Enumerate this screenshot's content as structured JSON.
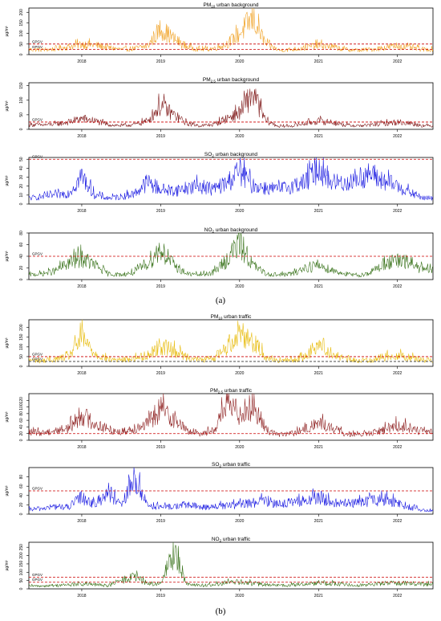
{
  "figure": {
    "ylabel": "µg/m³",
    "threshold_label": "GPGV",
    "panel_labels": [
      "(a)",
      "(b)"
    ],
    "colors": {
      "threshold": "#cc0000",
      "threshold_secondary": "#333333",
      "axis": "#000000"
    }
  },
  "chart_data": [
    {
      "type": "line",
      "group": "(a)",
      "site": "urban background",
      "pollutant": "PM10",
      "title": "PM10 urban background",
      "title_main": "PM",
      "title_sub": "10",
      "title_rest": " urban background",
      "color": "#f0a020",
      "ylim": [
        0,
        220
      ],
      "yticks": [
        0,
        50,
        100,
        150,
        200
      ],
      "thresholds": [
        50,
        25
      ],
      "gpgv_labels": [
        "GPGV",
        "GPGV"
      ],
      "xticks": [
        "2018",
        "2019",
        "2020",
        "2021",
        "2022"
      ],
      "x": [
        "2017-05",
        "2017-07",
        "2017-09",
        "2017-11",
        "2018-01",
        "2018-03",
        "2018-05",
        "2018-07",
        "2018-09",
        "2018-11",
        "2019-01",
        "2019-03",
        "2019-05",
        "2019-07",
        "2019-09",
        "2019-11",
        "2020-01",
        "2020-03",
        "2020-05",
        "2020-07",
        "2020-09",
        "2020-11",
        "2021-01",
        "2021-03",
        "2021-05",
        "2021-07",
        "2021-09",
        "2021-11",
        "2022-01",
        "2022-03",
        "2022-05"
      ],
      "y": [
        30,
        28,
        32,
        45,
        60,
        55,
        40,
        30,
        35,
        50,
        150,
        90,
        45,
        30,
        35,
        60,
        120,
        210,
        60,
        25,
        30,
        40,
        55,
        45,
        30,
        25,
        30,
        40,
        50,
        40,
        30
      ]
    },
    {
      "type": "line",
      "group": "(a)",
      "site": "urban background",
      "pollutant": "PM2.5",
      "title": "PM2.5 urban background",
      "title_main": "PM",
      "title_sub": "2.5",
      "title_rest": " urban background",
      "color": "#7a0f0f",
      "ylim": [
        0,
        160
      ],
      "yticks": [
        0,
        50,
        100,
        150
      ],
      "thresholds": [
        25
      ],
      "gpgv_labels": [
        "GPGV"
      ],
      "xticks": [
        "2018",
        "2019",
        "2020",
        "2021",
        "2022"
      ],
      "x": [
        "2017-05",
        "2017-07",
        "2017-09",
        "2017-11",
        "2018-01",
        "2018-03",
        "2018-05",
        "2018-07",
        "2018-09",
        "2018-11",
        "2019-01",
        "2019-03",
        "2019-05",
        "2019-07",
        "2019-09",
        "2019-11",
        "2020-01",
        "2020-03",
        "2020-05",
        "2020-07",
        "2020-09",
        "2020-11",
        "2021-01",
        "2021-03",
        "2021-05",
        "2021-07",
        "2021-09",
        "2021-11",
        "2022-01",
        "2022-03",
        "2022-05"
      ],
      "y": [
        20,
        18,
        22,
        30,
        45,
        35,
        20,
        15,
        20,
        35,
        100,
        60,
        25,
        15,
        20,
        45,
        70,
        150,
        35,
        12,
        15,
        25,
        35,
        30,
        18,
        15,
        18,
        25,
        30,
        25,
        15
      ]
    },
    {
      "type": "line",
      "group": "(a)",
      "site": "urban background",
      "pollutant": "SO2",
      "title": "SO2 urban background",
      "title_main": "SO",
      "title_sub": "2",
      "title_rest": " urban background",
      "color": "#1010e0",
      "ylim": [
        0,
        52
      ],
      "yticks": [
        0,
        10,
        20,
        30,
        40,
        50
      ],
      "thresholds": [
        50
      ],
      "gpgv_labels": [
        "GPGV"
      ],
      "xticks": [
        "2018",
        "2019",
        "2020",
        "2021",
        "2022"
      ],
      "x": [
        "2017-05",
        "2017-07",
        "2017-09",
        "2017-11",
        "2018-01",
        "2018-03",
        "2018-05",
        "2018-07",
        "2018-09",
        "2018-11",
        "2019-01",
        "2019-03",
        "2019-05",
        "2019-07",
        "2019-09",
        "2019-11",
        "2020-01",
        "2020-03",
        "2020-05",
        "2020-07",
        "2020-09",
        "2020-11",
        "2021-01",
        "2021-03",
        "2021-05",
        "2021-07",
        "2021-09",
        "2021-11",
        "2022-01",
        "2022-03",
        "2022-05"
      ],
      "y": [
        8,
        10,
        12,
        15,
        38,
        12,
        8,
        10,
        14,
        30,
        20,
        18,
        22,
        25,
        20,
        28,
        45,
        25,
        22,
        20,
        25,
        30,
        50,
        30,
        28,
        35,
        40,
        30,
        25,
        15,
        8
      ]
    },
    {
      "type": "line",
      "group": "(a)",
      "site": "urban background",
      "pollutant": "NO2",
      "title": "NO2 urban background",
      "title_main": "NO",
      "title_sub": "2",
      "title_rest": " urban background",
      "color": "#2e6b0e",
      "ylim": [
        0,
        80
      ],
      "yticks": [
        0,
        20,
        40,
        60,
        80
      ],
      "thresholds": [
        40
      ],
      "gpgv_labels": [
        "GPGV"
      ],
      "xticks": [
        "2018",
        "2019",
        "2020",
        "2021",
        "2022"
      ],
      "x": [
        "2017-05",
        "2017-07",
        "2017-09",
        "2017-11",
        "2018-01",
        "2018-03",
        "2018-05",
        "2018-07",
        "2018-09",
        "2018-11",
        "2019-01",
        "2019-03",
        "2019-05",
        "2019-07",
        "2019-09",
        "2019-11",
        "2020-01",
        "2020-03",
        "2020-05",
        "2020-07",
        "2020-09",
        "2020-11",
        "2021-01",
        "2021-03",
        "2021-05",
        "2021-07",
        "2021-09",
        "2021-11",
        "2022-01",
        "2022-03",
        "2022-05"
      ],
      "y": [
        10,
        12,
        18,
        35,
        45,
        30,
        12,
        10,
        15,
        35,
        65,
        30,
        12,
        10,
        15,
        40,
        78,
        30,
        12,
        10,
        12,
        25,
        30,
        20,
        12,
        8,
        15,
        35,
        38,
        35,
        20
      ]
    },
    {
      "type": "line",
      "group": "(b)",
      "site": "urban traffic",
      "pollutant": "PM10",
      "title": "PM10 urban traffic",
      "title_main": "PM",
      "title_sub": "10",
      "title_rest": " urban traffic",
      "color": "#e6b800",
      "ylim": [
        0,
        240
      ],
      "yticks": [
        0,
        50,
        100,
        150,
        200
      ],
      "thresholds": [
        50,
        25
      ],
      "gpgv_labels": [
        "GPGV",
        "GPGV"
      ],
      "xticks": [
        "2018",
        "2019",
        "2020",
        "2021",
        "2022"
      ],
      "x": [
        "2017-05",
        "2017-07",
        "2017-09",
        "2017-11",
        "2018-01",
        "2018-03",
        "2018-05",
        "2018-07",
        "2018-09",
        "2018-11",
        "2019-01",
        "2019-03",
        "2019-05",
        "2019-07",
        "2019-09",
        "2019-11",
        "2020-01",
        "2020-03",
        "2020-05",
        "2020-07",
        "2020-09",
        "2020-11",
        "2021-01",
        "2021-03",
        "2021-05",
        "2021-07",
        "2021-09",
        "2021-11",
        "2022-01",
        "2022-03",
        "2022-05"
      ],
      "y": [
        40,
        35,
        45,
        60,
        180,
        80,
        45,
        40,
        50,
        70,
        130,
        100,
        60,
        40,
        50,
        120,
        220,
        160,
        60,
        35,
        40,
        60,
        150,
        80,
        45,
        35,
        40,
        60,
        70,
        55,
        40
      ]
    },
    {
      "type": "line",
      "group": "(b)",
      "site": "urban traffic",
      "pollutant": "PM2.5",
      "title": "PM2.5 urban traffic",
      "title_main": "PM",
      "title_sub": "2.5",
      "title_rest": " urban traffic",
      "color": "#8b1a1a",
      "ylim": [
        0,
        140
      ],
      "yticks": [
        0,
        20,
        40,
        60,
        80,
        100,
        120
      ],
      "thresholds": [
        20
      ],
      "gpgv_labels": [],
      "xticks": [
        "2018",
        "2019",
        "2020",
        "2021",
        "2022"
      ],
      "x": [
        "2017-05",
        "2017-07",
        "2017-09",
        "2017-11",
        "2018-01",
        "2018-03",
        "2018-05",
        "2018-07",
        "2018-09",
        "2018-11",
        "2019-01",
        "2019-03",
        "2019-05",
        "2019-07",
        "2019-09",
        "2019-11",
        "2020-01",
        "2020-03",
        "2020-05",
        "2020-07",
        "2020-09",
        "2020-11",
        "2021-01",
        "2021-03",
        "2021-05",
        "2021-07",
        "2021-09",
        "2021-11",
        "2022-01",
        "2022-03",
        "2022-05"
      ],
      "y": [
        30,
        28,
        35,
        45,
        95,
        60,
        40,
        30,
        45,
        60,
        115,
        80,
        35,
        25,
        35,
        130,
        100,
        130,
        40,
        20,
        25,
        40,
        65,
        45,
        25,
        20,
        25,
        40,
        55,
        45,
        30
      ]
    },
    {
      "type": "line",
      "group": "(b)",
      "site": "urban traffic",
      "pollutant": "SO2",
      "title": "SO2 urban traffic",
      "title_main": "SO",
      "title_sub": "2",
      "title_rest": " urban traffic",
      "color": "#1010e0",
      "ylim": [
        0,
        100
      ],
      "yticks": [
        0,
        20,
        40,
        60,
        80
      ],
      "thresholds": [
        50
      ],
      "gpgv_labels": [
        "GPGV"
      ],
      "xticks": [
        "2018",
        "2019",
        "2020",
        "2021",
        "2022"
      ],
      "x": [
        "2017-05",
        "2017-07",
        "2017-09",
        "2017-11",
        "2018-01",
        "2018-03",
        "2018-05",
        "2018-07",
        "2018-09",
        "2018-11",
        "2019-01",
        "2019-03",
        "2019-05",
        "2019-07",
        "2019-09",
        "2019-11",
        "2020-01",
        "2020-03",
        "2020-05",
        "2020-07",
        "2020-09",
        "2020-11",
        "2021-01",
        "2021-03",
        "2021-05",
        "2021-07",
        "2021-09",
        "2021-11",
        "2022-01",
        "2022-03",
        "2022-05"
      ],
      "y": [
        12,
        15,
        20,
        18,
        45,
        25,
        60,
        20,
        95,
        25,
        18,
        20,
        25,
        18,
        20,
        22,
        25,
        30,
        35,
        28,
        30,
        35,
        45,
        30,
        28,
        30,
        35,
        38,
        30,
        18,
        10
      ]
    },
    {
      "type": "line",
      "group": "(b)",
      "site": "urban traffic",
      "pollutant": "NO2",
      "title": "NO2 urban traffic",
      "title_main": "NO",
      "title_sub": "2",
      "title_rest": " urban traffic",
      "color": "#2e6b0e",
      "ylim": [
        0,
        280
      ],
      "yticks": [
        0,
        50,
        100,
        150,
        200,
        250
      ],
      "thresholds": [
        70,
        40
      ],
      "gpgv_labels": [
        "GPGV",
        "GPGV"
      ],
      "xticks": [
        "2018",
        "2019",
        "2020",
        "2021",
        "2022"
      ],
      "x": [
        "2017-05",
        "2017-07",
        "2017-09",
        "2017-11",
        "2018-01",
        "2018-03",
        "2018-05",
        "2018-07",
        "2018-09",
        "2018-11",
        "2019-01",
        "2019-03",
        "2019-05",
        "2019-07",
        "2019-09",
        "2019-11",
        "2020-01",
        "2020-03",
        "2020-05",
        "2020-07",
        "2020-09",
        "2020-11",
        "2021-01",
        "2021-03",
        "2021-05",
        "2021-07",
        "2021-09",
        "2021-11",
        "2022-01",
        "2022-03",
        "2022-05"
      ],
      "y": [
        20,
        22,
        25,
        30,
        35,
        30,
        25,
        60,
        90,
        40,
        35,
        270,
        40,
        25,
        30,
        45,
        50,
        40,
        30,
        25,
        28,
        35,
        45,
        40,
        30,
        28,
        32,
        40,
        45,
        40,
        35
      ]
    }
  ]
}
